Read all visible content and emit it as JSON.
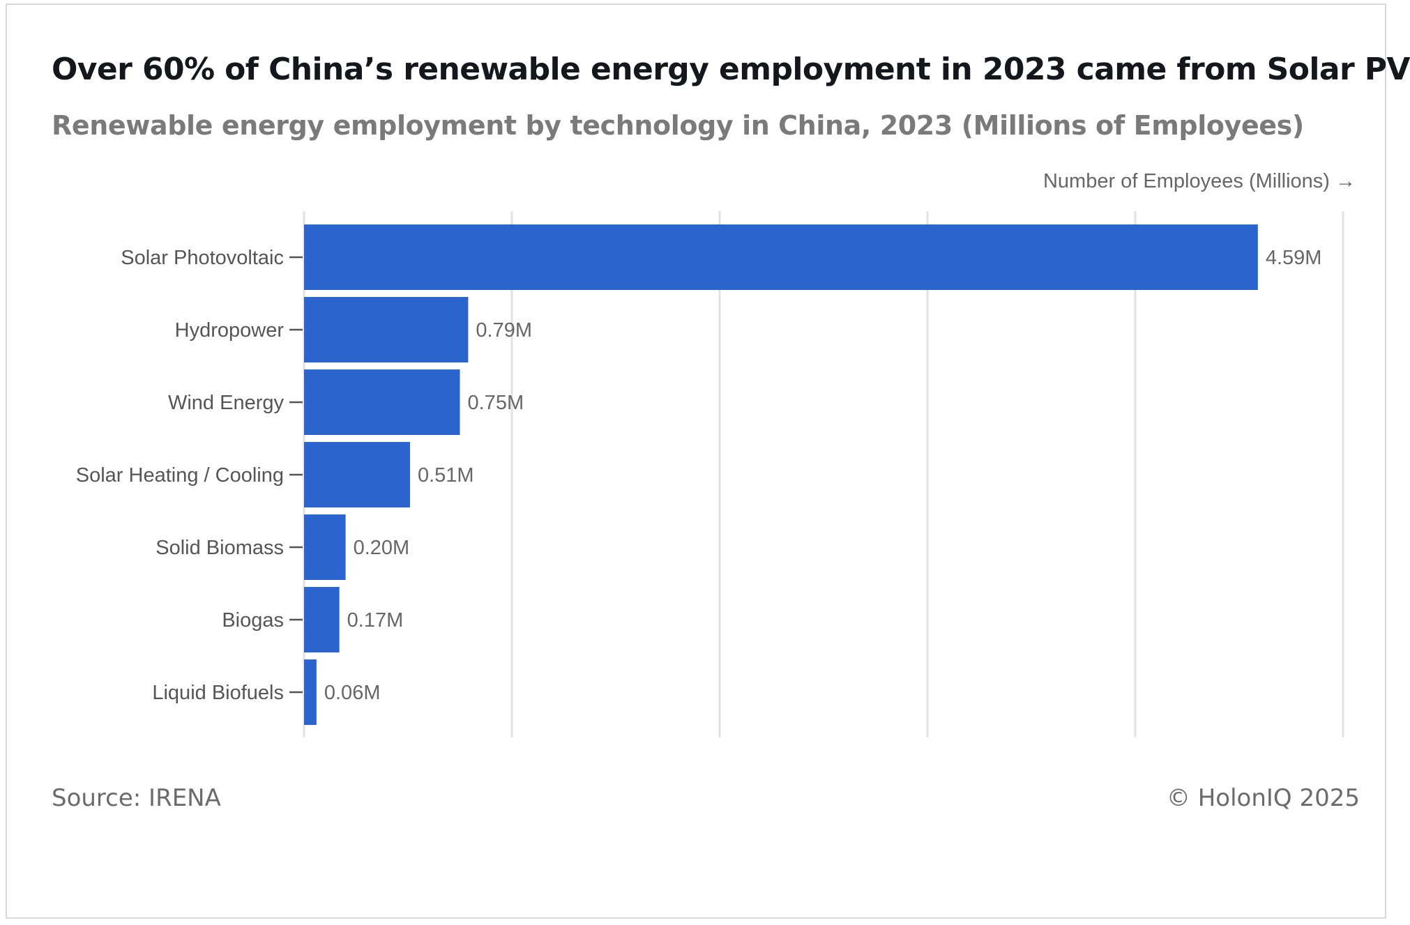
{
  "chart_data": {
    "type": "bar",
    "orientation": "horizontal",
    "title": "Over 60% of China’s renewable energy employment in 2023 came from Solar PV",
    "subtitle": "Renewable energy employment by technology in China, 2023 (Millions of Employees)",
    "xlabel": "Number of Employees (Millions) →",
    "ylabel": "",
    "categories": [
      "Solar Photovoltaic",
      "Hydropower",
      "Wind Energy",
      "Solar Heating / Cooling",
      "Solid Biomass",
      "Biogas",
      "Liquid Biofuels"
    ],
    "values": [
      4.59,
      0.79,
      0.75,
      0.51,
      0.2,
      0.17,
      0.06
    ],
    "data_labels": [
      "4.59M",
      "0.79M",
      "0.75M",
      "0.51M",
      "0.20M",
      "0.17M",
      "0.06M"
    ],
    "xlim": [
      0,
      5
    ],
    "grid": true,
    "bar_color": "#2a64cc",
    "source": "Source: IRENA",
    "copyright": "© HolonIQ 2025"
  }
}
